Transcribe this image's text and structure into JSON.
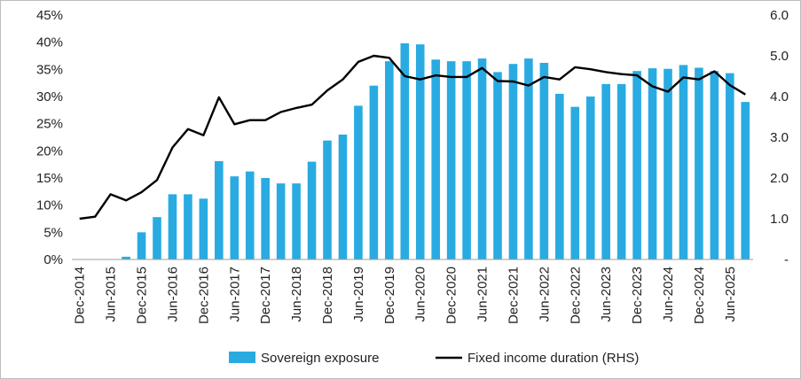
{
  "chart_data": {
    "type": "bar",
    "title": "",
    "xlabel": "",
    "ylabel": "",
    "ylim": [
      0,
      45
    ],
    "y2lim": [
      0,
      6
    ],
    "y_ticks": [
      "0%",
      "5%",
      "10%",
      "15%",
      "20%",
      "25%",
      "30%",
      "35%",
      "40%",
      "45%"
    ],
    "y2_ticks": [
      "-",
      "1.0",
      "2.0",
      "3.0",
      "4.0",
      "5.0",
      "6.0"
    ],
    "grid": false,
    "legend_position": "bottom",
    "x_ticks": [
      {
        "label": "Dec-2014",
        "index": 0
      },
      {
        "label": "Jun-2015",
        "index": 2
      },
      {
        "label": "Dec-2015",
        "index": 4
      },
      {
        "label": "Jun-2016",
        "index": 6
      },
      {
        "label": "Dec-2016",
        "index": 8
      },
      {
        "label": "Jun-2017",
        "index": 10
      },
      {
        "label": "Dec-2017",
        "index": 12
      },
      {
        "label": "Jun-2018",
        "index": 14
      },
      {
        "label": "Dec-2018",
        "index": 16
      },
      {
        "label": "Jun-2019",
        "index": 18
      },
      {
        "label": "Dec-2019",
        "index": 20
      },
      {
        "label": "Jun-2020",
        "index": 22
      },
      {
        "label": "Dec-2020",
        "index": 24
      },
      {
        "label": "Jun-2021",
        "index": 26
      },
      {
        "label": "Dec-2021",
        "index": 28
      },
      {
        "label": "Jun-2022",
        "index": 30
      },
      {
        "label": "Dec-2022",
        "index": 32
      },
      {
        "label": "Jun-2023",
        "index": 34
      },
      {
        "label": "Dec-2023",
        "index": 36
      },
      {
        "label": "Jun-2024",
        "index": 38
      },
      {
        "label": "Dec-2024",
        "index": 40
      },
      {
        "label": "Jun-2025",
        "index": 42
      }
    ],
    "series": [
      {
        "name": "Sovereign exposure",
        "type": "bar",
        "axis": "left",
        "color": "#29abe2",
        "values": [
          0,
          0,
          0,
          0.5,
          5,
          7.8,
          12,
          12,
          11.2,
          18.1,
          15.3,
          16.2,
          15,
          14,
          14,
          18,
          21.9,
          23,
          28.3,
          32,
          36.5,
          39.8,
          39.6,
          36.8,
          36.5,
          36.5,
          37,
          34.5,
          36,
          37,
          36.2,
          30.5,
          28.1,
          30,
          32.3,
          32.3,
          34.7,
          35.2,
          35.1,
          35.8,
          35.3,
          34.7,
          34.3,
          29
        ]
      },
      {
        "name": "Fixed income duration (RHS)",
        "type": "line",
        "axis": "right",
        "color": "#000000",
        "values": [
          1.0,
          1.05,
          1.6,
          1.45,
          1.65,
          1.95,
          2.75,
          3.2,
          3.05,
          3.98,
          3.32,
          3.42,
          3.42,
          3.62,
          3.72,
          3.8,
          4.15,
          4.42,
          4.85,
          5.0,
          4.95,
          4.5,
          4.42,
          4.52,
          4.48,
          4.48,
          4.7,
          4.38,
          4.37,
          4.27,
          4.48,
          4.42,
          4.72,
          4.67,
          4.6,
          4.55,
          4.52,
          4.25,
          4.12,
          4.47,
          4.42,
          4.62,
          4.28,
          4.05
        ]
      }
    ]
  }
}
